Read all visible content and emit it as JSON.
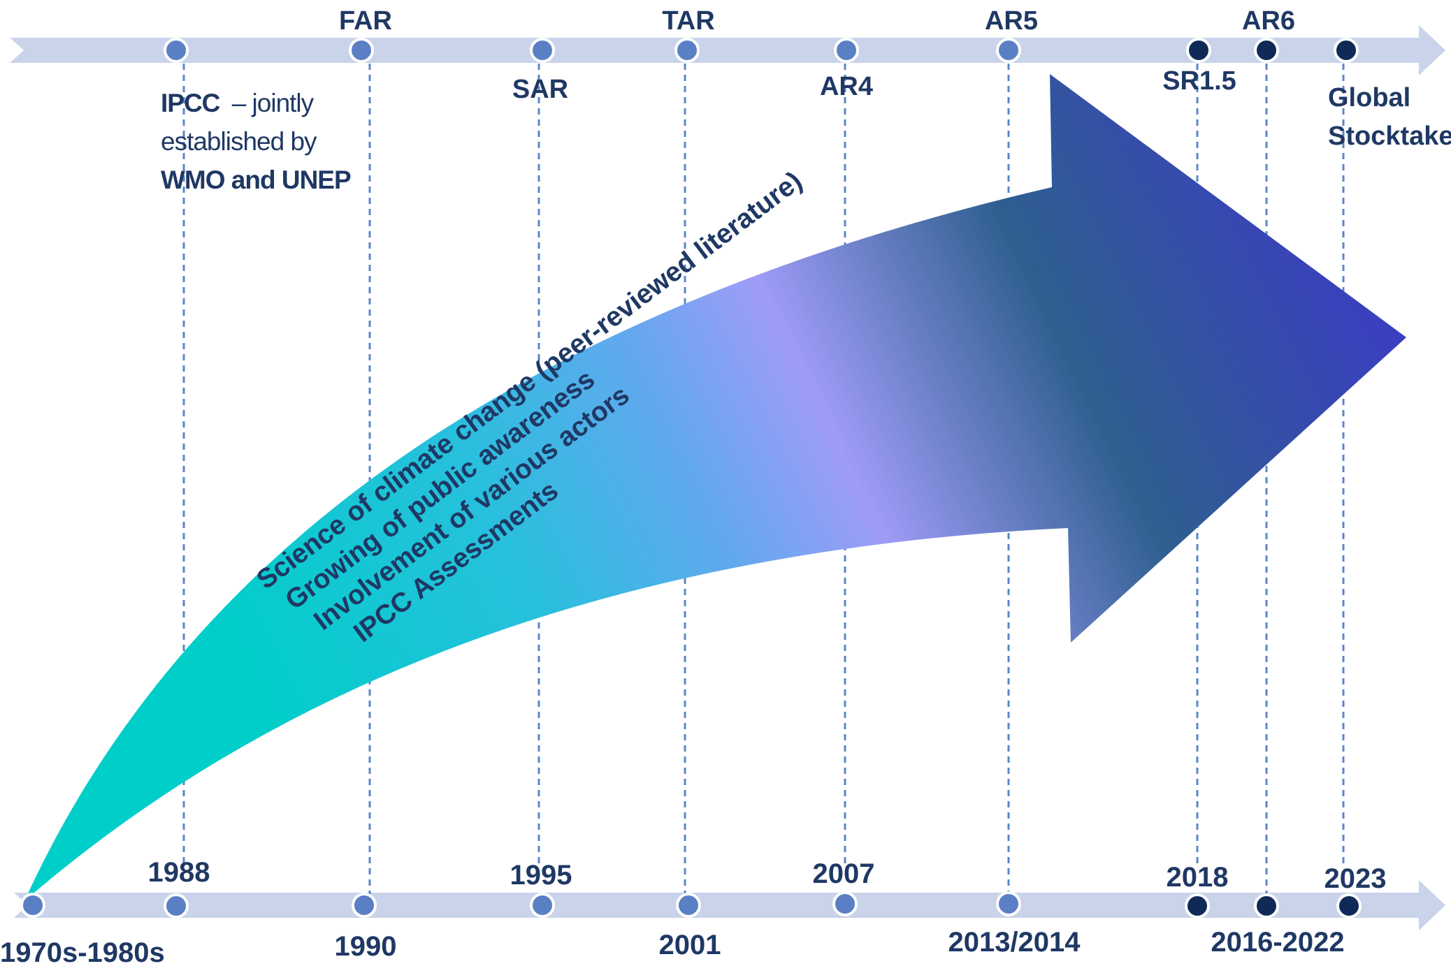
{
  "colors": {
    "timeline_bar": "#c9d3ea",
    "dot_light": "#5b7fc4",
    "dot_dark": "#0f2a57",
    "text": "#1f3864",
    "guide_line": "#5b86c9",
    "arrow_gradient": [
      "#00cec9",
      "#4fb3e8",
      "#9f9cf7",
      "#2e5f8f",
      "#3b3fbf"
    ]
  },
  "top_labels": {
    "far": "FAR",
    "tar": "TAR",
    "ar5": "AR5",
    "ar6": "AR6",
    "sar": "SAR",
    "ar4": "AR4",
    "sr15": "SR1.5",
    "global": "Global",
    "stocktake": "Stocktake"
  },
  "ipcc_note": {
    "bold_1": "IPCC",
    "text_1": "– jointly",
    "text_2": "established by",
    "bold_2": "WMO and UNEP"
  },
  "bottom_labels": {
    "y1970s": "1970s-1980s",
    "y1988": "1988",
    "y1990": "1990",
    "y1995": "1995",
    "y2001": "2001",
    "y2007": "2007",
    "y2013": "2013/2014",
    "y2018": "2018",
    "y2016": "2016-2022",
    "y2023": "2023"
  },
  "arrow_lines": [
    "Science of climate change (peer-reviewed literature)",
    "Growing of public awareness",
    "Involvement of various actors",
    "IPCC Assessments"
  ]
}
